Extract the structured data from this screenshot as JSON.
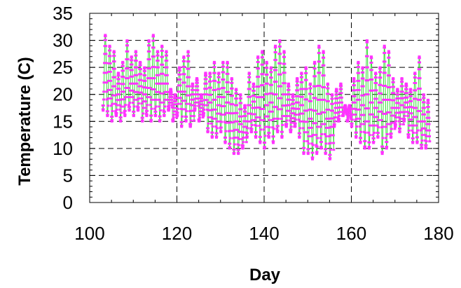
{
  "chart_data": {
    "type": "line",
    "title": "",
    "xlabel": "Day",
    "ylabel": "Temperature (C)",
    "xlim": [
      100,
      180
    ],
    "ylim": [
      0,
      35
    ],
    "x_ticks": [
      100,
      120,
      140,
      160,
      180
    ],
    "y_ticks": [
      0,
      5,
      10,
      15,
      20,
      25,
      30,
      35
    ],
    "grid": "dashed at major ticks",
    "legend": "none",
    "colors": {
      "line": "#33dd33",
      "markers": "#ff33ff",
      "grid": "#000000"
    },
    "series": [
      {
        "values_note_free": true,
        "x": [
          103.5,
          104.5,
          105.5,
          106.5,
          107.5,
          108.5,
          109.5,
          110.5,
          111.5,
          112.5,
          113.5,
          114.5,
          115.5,
          116.5,
          117.5,
          118.5,
          119.5,
          120.5,
          121.5,
          122.5,
          123.5,
          124.5,
          125.5,
          126.5,
          127.5,
          128.5,
          129.5,
          130.5,
          131.5,
          132.5,
          133.5,
          134.5,
          135.5,
          136.5,
          137.5,
          138.5,
          139.5,
          140.5,
          141.5,
          142.5,
          143.5,
          144.5,
          145.5,
          146.5,
          147.5,
          148.5,
          149.5,
          150.5,
          151.5,
          152.5,
          153.5,
          154.5,
          155.5,
          156.5,
          157.5,
          158.5,
          159.5,
          160.5,
          161.5,
          162.5,
          163.5,
          164.5,
          165.5,
          166.5,
          167.5,
          168.5,
          169.5,
          170.5,
          171.5,
          172.5,
          173.5,
          174.5,
          175.5,
          176.5,
          177.5
        ],
        "daily_max": [
          31,
          29,
          28,
          24,
          26,
          30,
          27,
          28,
          26,
          25,
          30,
          31,
          28,
          29,
          28,
          21,
          20,
          25,
          27,
          28,
          22,
          23,
          20,
          24,
          24,
          26,
          24,
          26,
          26,
          23,
          21,
          20,
          18,
          24,
          22,
          27,
          28,
          26,
          25,
          29,
          30,
          28,
          22,
          20,
          23,
          24,
          25,
          22,
          26,
          29,
          28,
          22,
          20,
          21,
          22,
          18,
          18,
          23,
          26,
          25,
          30,
          27,
          24,
          25,
          29,
          28,
          23,
          21,
          23,
          22,
          21,
          24,
          27,
          20,
          19
        ],
        "daily_min": [
          17,
          16,
          15,
          16,
          15,
          16,
          17,
          16,
          17,
          15,
          16,
          15,
          16,
          15,
          16,
          17,
          15,
          16,
          14,
          15,
          14,
          17,
          15,
          16,
          13,
          12,
          12,
          13,
          11,
          10,
          9,
          9,
          10,
          12,
          13,
          12,
          11,
          10,
          12,
          11,
          13,
          12,
          14,
          13,
          14,
          12,
          9,
          9,
          8,
          9,
          10,
          9,
          8,
          14,
          15,
          16,
          15,
          14,
          12,
          11,
          10,
          10,
          11,
          12,
          9,
          10,
          12,
          14,
          13,
          15,
          12,
          11,
          11,
          10,
          10
        ]
      }
    ]
  }
}
